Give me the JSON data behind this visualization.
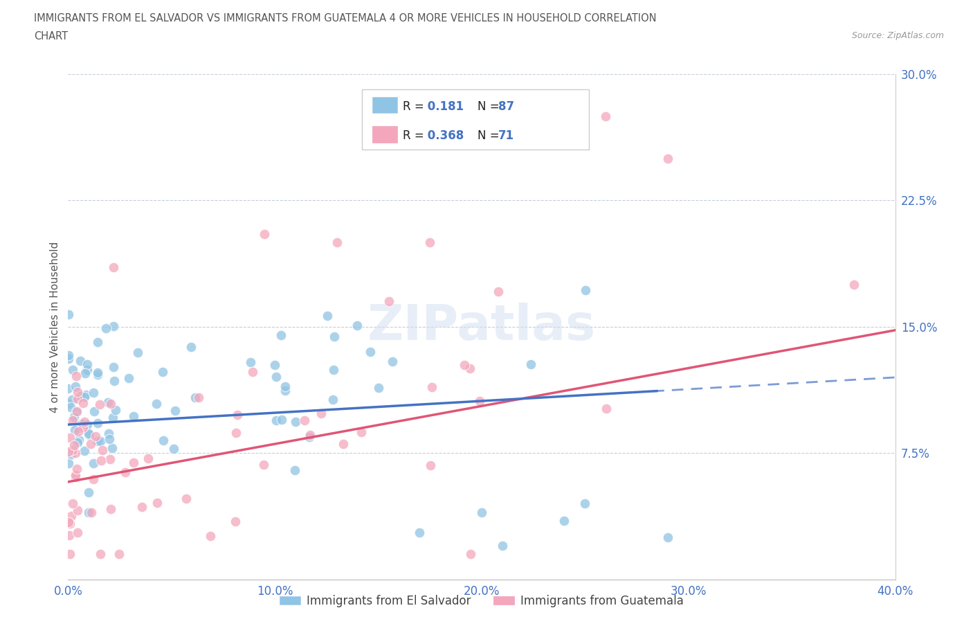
{
  "title_line1": "IMMIGRANTS FROM EL SALVADOR VS IMMIGRANTS FROM GUATEMALA 4 OR MORE VEHICLES IN HOUSEHOLD CORRELATION",
  "title_line2": "CHART",
  "source": "Source: ZipAtlas.com",
  "ylabel": "4 or more Vehicles in Household",
  "xlim": [
    0.0,
    0.4
  ],
  "ylim": [
    0.0,
    0.3
  ],
  "xticks": [
    0.0,
    0.1,
    0.2,
    0.3,
    0.4
  ],
  "xtick_labels": [
    "0.0%",
    "10.0%",
    "20.0%",
    "30.0%",
    "40.0%"
  ],
  "yticks": [
    0.0,
    0.075,
    0.15,
    0.225,
    0.3
  ],
  "ytick_labels": [
    "",
    "7.5%",
    "15.0%",
    "22.5%",
    "30.0%"
  ],
  "R1": "0.181",
  "N1": "87",
  "R2": "0.368",
  "N2": "71",
  "color_blue": "#90c4e4",
  "color_pink": "#f4a7bc",
  "color_trend_blue": "#4472c4",
  "color_trend_pink": "#e05575",
  "color_title": "#555555",
  "color_axis": "#4472c4",
  "background_color": "#ffffff",
  "legend1_label": "Immigrants from El Salvador",
  "legend2_label": "Immigrants from Guatemala",
  "trend_blue_y0": 0.092,
  "trend_blue_y1": 0.12,
  "trend_pink_y0": 0.058,
  "trend_pink_y1": 0.148,
  "trend_dash_start": 0.285
}
